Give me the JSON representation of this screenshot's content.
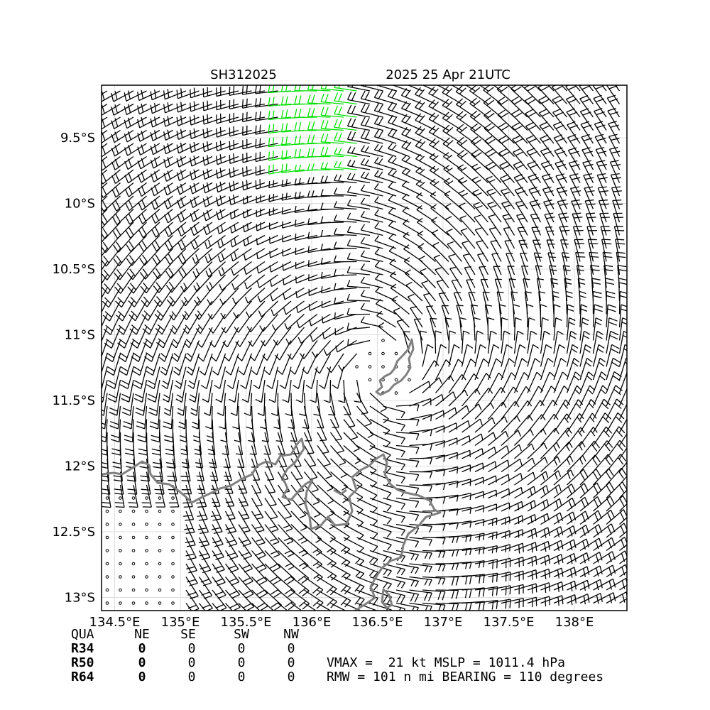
{
  "header": {
    "storm_id": "SH312025",
    "datetime": "2025 25 Apr 21UTC"
  },
  "map": {
    "lon_range": [
      134.4,
      138.4
    ],
    "lat_range": [
      -13.1,
      -9.1
    ],
    "lon_ticks": [
      {
        "value": 134.5,
        "label": "134.5°E"
      },
      {
        "value": 135.0,
        "label": "135°E"
      },
      {
        "value": 135.5,
        "label": "135.5°E"
      },
      {
        "value": 136.0,
        "label": "136°E"
      },
      {
        "value": 136.5,
        "label": "136.5°E"
      },
      {
        "value": 137.0,
        "label": "137°E"
      },
      {
        "value": 137.5,
        "label": "137.5°E"
      },
      {
        "value": 138.0,
        "label": "138°E"
      }
    ],
    "lat_ticks": [
      {
        "value": -9.5,
        "label": "9.5°S"
      },
      {
        "value": -10.0,
        "label": "10°S"
      },
      {
        "value": -10.5,
        "label": "10.5°S"
      },
      {
        "value": -11.0,
        "label": "11°S"
      },
      {
        "value": -11.5,
        "label": "11.5°S"
      },
      {
        "value": -12.0,
        "label": "12°S"
      },
      {
        "value": -12.5,
        "label": "12.5°S"
      },
      {
        "value": -13.0,
        "label": "13°S"
      }
    ],
    "center": {
      "lon": 136.55,
      "lat": -11.25
    },
    "colors": {
      "barb": "#000000",
      "barb_34kt": "#00e000",
      "coast": "#808080",
      "grid": "#dddddd"
    }
  },
  "radii_table": {
    "headers": [
      "QUA",
      "NE",
      "SE",
      "SW",
      "NW"
    ],
    "rows": [
      {
        "label": "R34",
        "values": [
          "0",
          "0",
          "0",
          "0"
        ]
      },
      {
        "label": "R50",
        "values": [
          "0",
          "0",
          "0",
          "0"
        ]
      },
      {
        "label": "R64",
        "values": [
          "0",
          "0",
          "0",
          "0"
        ]
      }
    ]
  },
  "summary": {
    "line1": "VMAX =  21 kt MSLP = 1011.4 hPa",
    "line2": "RMW = 101 n mi BEARING = 110 degrees"
  }
}
